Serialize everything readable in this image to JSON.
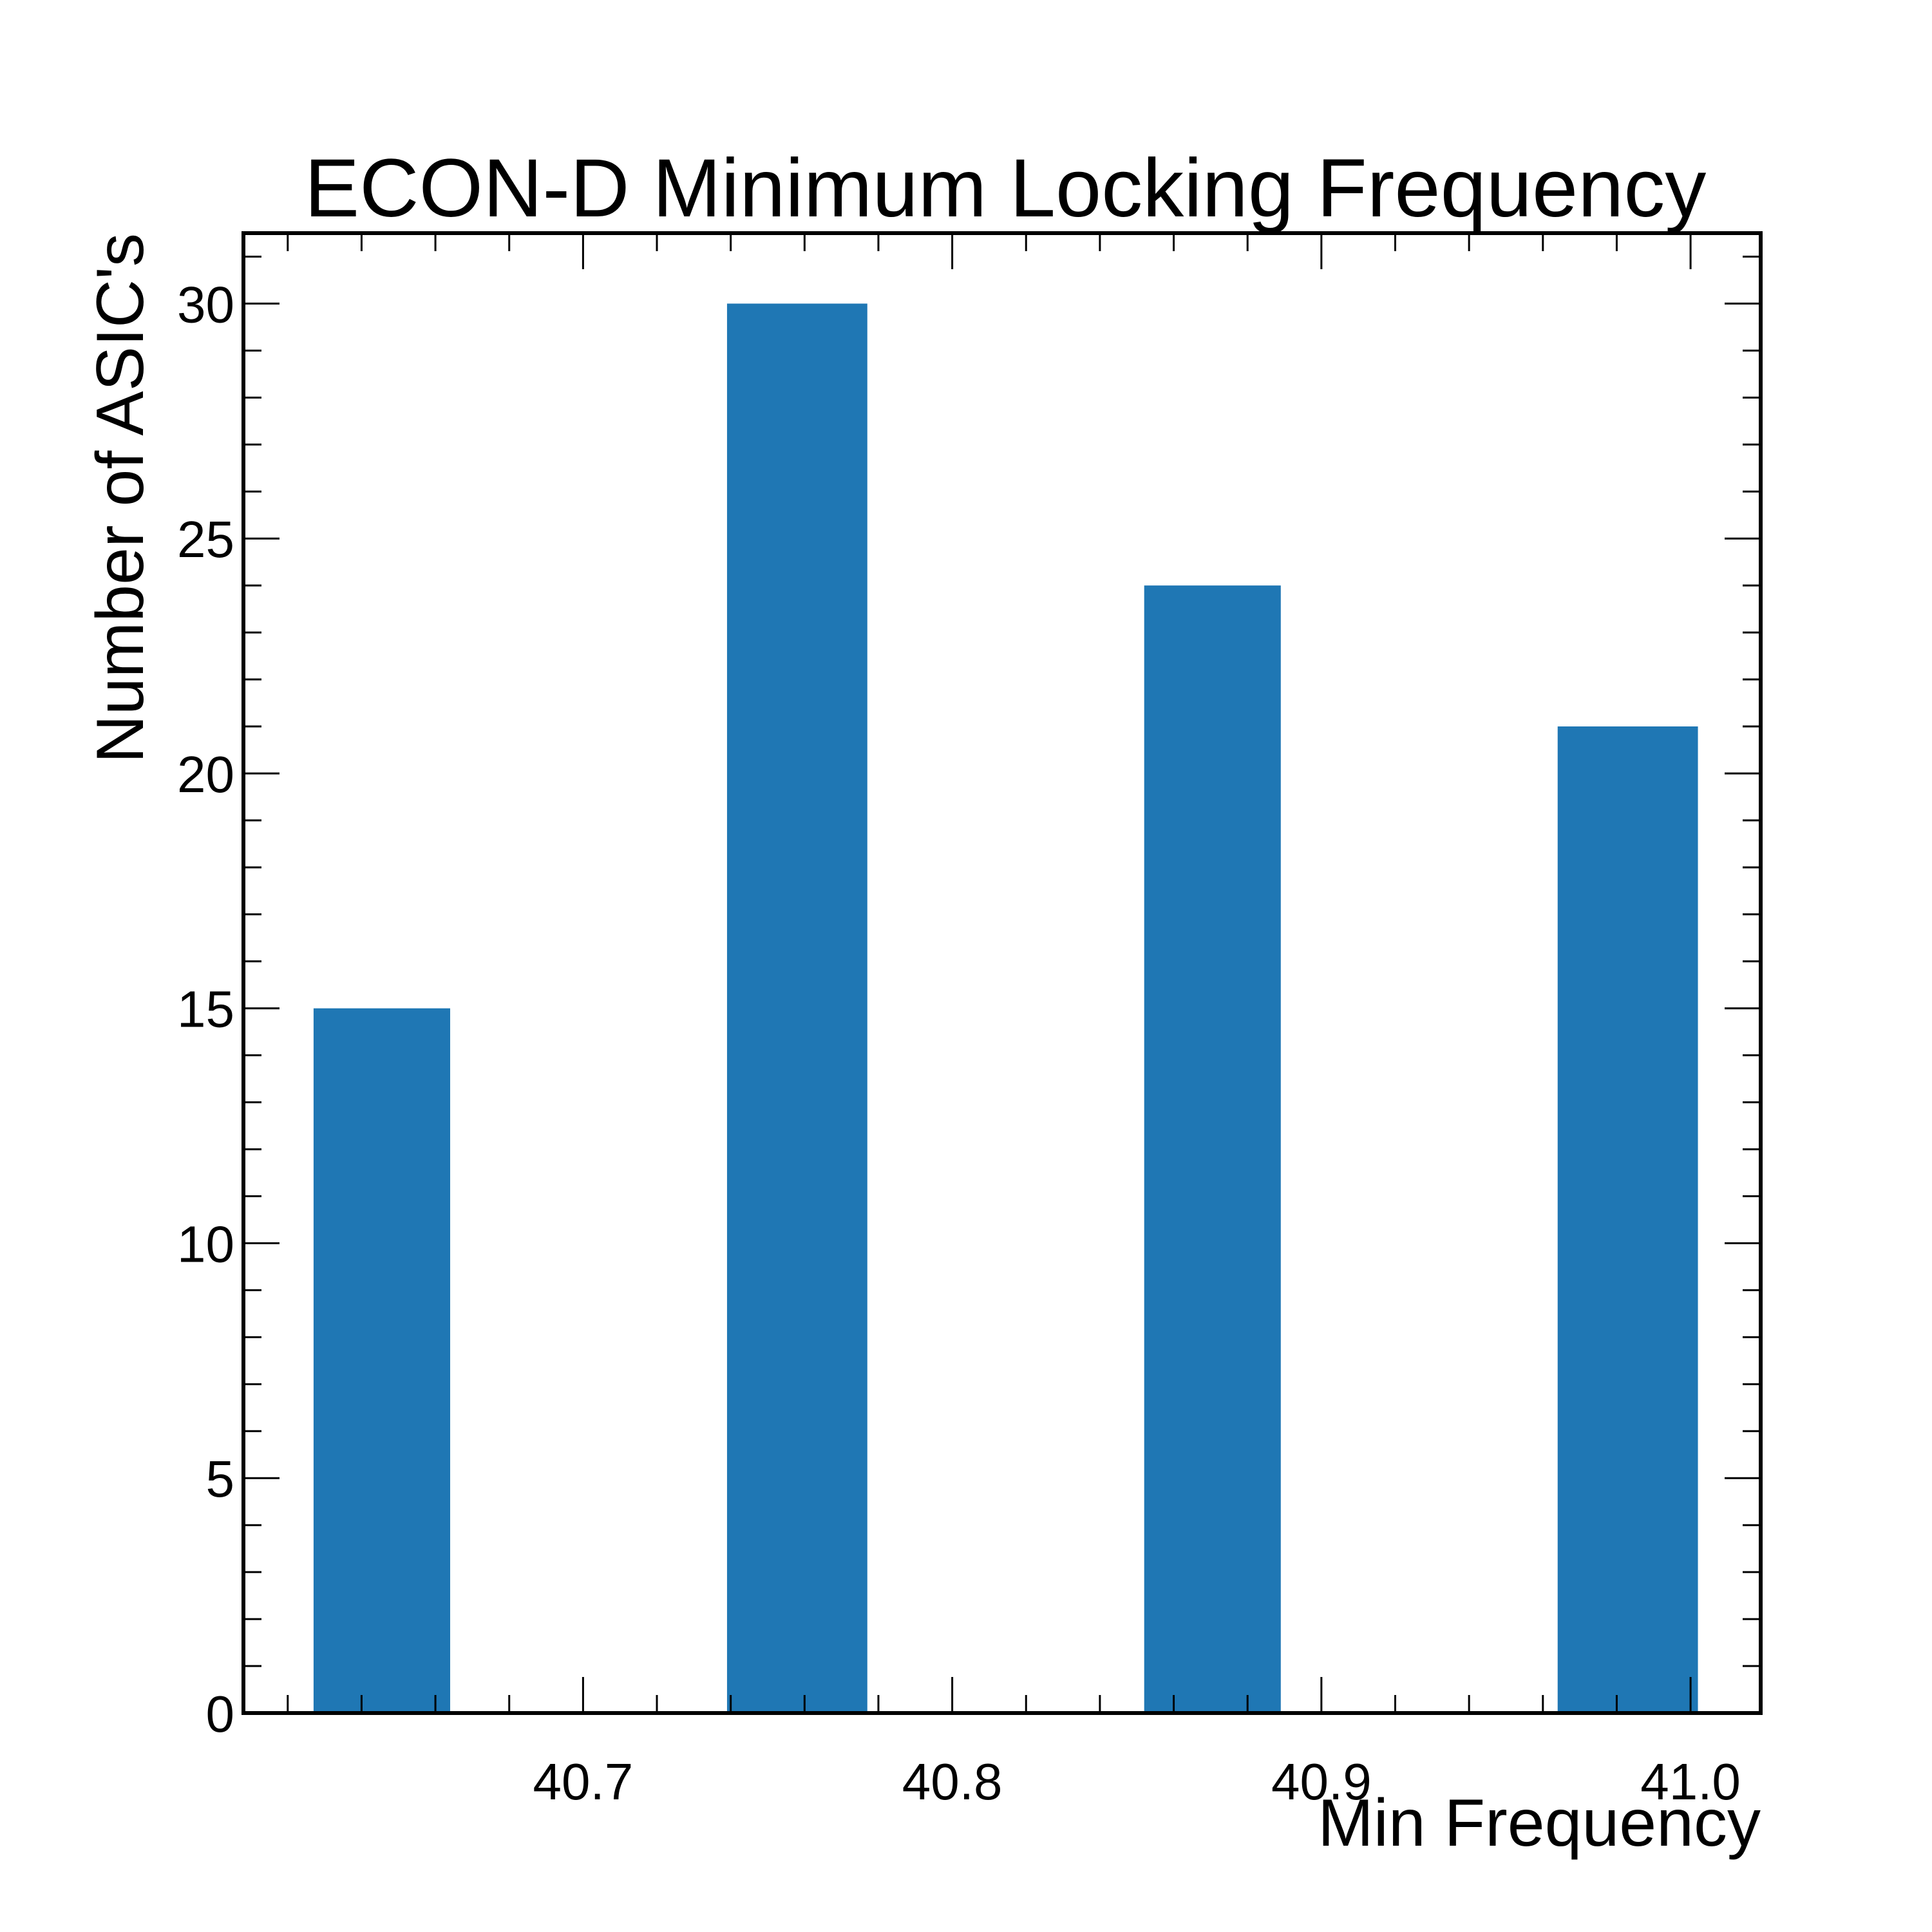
{
  "chart_data": {
    "type": "bar",
    "title": "ECON-D Minimum Locking Frequency",
    "xlabel": "Min Frequency",
    "ylabel": "Number of ASIC's",
    "bins": [
      {
        "x0": 40.627,
        "x1": 40.664,
        "value": 15
      },
      {
        "x0": 40.739,
        "x1": 40.777,
        "value": 30
      },
      {
        "x0": 40.852,
        "x1": 40.889,
        "value": 24
      },
      {
        "x0": 40.964,
        "x1": 41.002,
        "value": 21
      }
    ],
    "xlim": [
      40.608,
      41.019
    ],
    "ylim": [
      0,
      31.5
    ],
    "xticks": [
      {
        "value": 40.7,
        "label": "40.7"
      },
      {
        "value": 40.8,
        "label": "40.8"
      },
      {
        "value": 40.9,
        "label": "40.9"
      },
      {
        "value": 41.0,
        "label": "41.0"
      }
    ],
    "yticks": [
      {
        "value": 0,
        "label": "0"
      },
      {
        "value": 5,
        "label": "5"
      },
      {
        "value": 10,
        "label": "10"
      },
      {
        "value": 15,
        "label": "15"
      },
      {
        "value": 20,
        "label": "20"
      },
      {
        "value": 25,
        "label": "25"
      },
      {
        "value": 30,
        "label": "30"
      }
    ],
    "x_minor_step": 0.02,
    "y_minor_step": 1,
    "bar_color": "#1f77b4",
    "grid": false,
    "legend": "none"
  }
}
